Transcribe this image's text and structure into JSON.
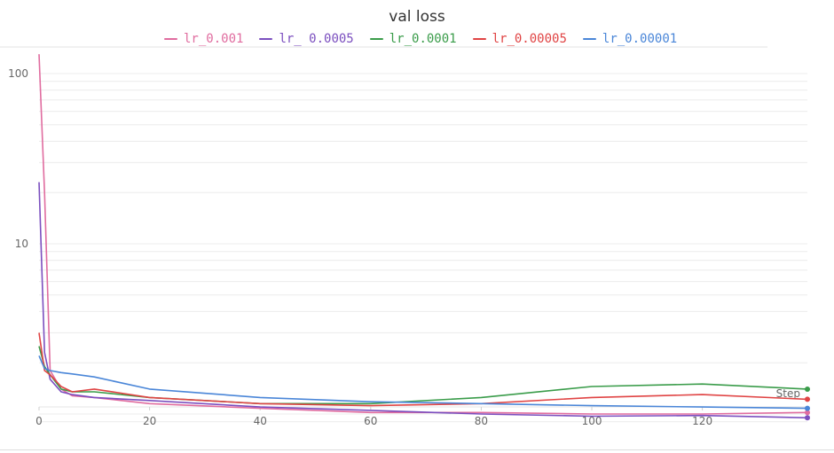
{
  "chart_data": {
    "type": "line",
    "title": "val loss",
    "xlabel": "Step",
    "ylabel": "",
    "yscale": "log",
    "xlim": [
      0,
      139
    ],
    "ylim": [
      0.9,
      150
    ],
    "x_ticks": [
      0,
      20,
      40,
      60,
      80,
      100,
      120
    ],
    "y_ticks": [
      10,
      100
    ],
    "grid": true,
    "legend_position": "top",
    "series": [
      {
        "name": "lr_0.001",
        "color": "#e06c9f",
        "x": [
          0,
          1,
          2,
          4,
          6,
          10,
          20,
          40,
          60,
          80,
          100,
          120,
          139
        ],
        "y": [
          130,
          20,
          1.8,
          1.4,
          1.28,
          1.25,
          1.15,
          1.08,
          1.02,
          1.02,
          1.0,
          1.0,
          1.02
        ]
      },
      {
        "name": "lr_ 0.0005",
        "color": "#7b4fbf",
        "x": [
          0,
          1,
          2,
          4,
          6,
          10,
          20,
          40,
          60,
          80,
          100,
          120,
          139
        ],
        "y": [
          23,
          2.3,
          1.6,
          1.35,
          1.3,
          1.25,
          1.2,
          1.1,
          1.05,
          1.0,
          0.97,
          0.98,
          0.95
        ]
      },
      {
        "name": "lr_0.0001",
        "color": "#3a9c4a",
        "x": [
          0,
          1,
          2,
          4,
          6,
          10,
          20,
          40,
          60,
          80,
          100,
          120,
          139
        ],
        "y": [
          2.5,
          1.9,
          1.7,
          1.4,
          1.35,
          1.35,
          1.25,
          1.15,
          1.15,
          1.25,
          1.45,
          1.5,
          1.4
        ]
      },
      {
        "name": "lr_0.00005",
        "color": "#e04444",
        "x": [
          0,
          1,
          2,
          4,
          6,
          10,
          20,
          40,
          60,
          80,
          100,
          120,
          139
        ],
        "y": [
          3.0,
          1.8,
          1.7,
          1.45,
          1.35,
          1.4,
          1.25,
          1.15,
          1.12,
          1.15,
          1.25,
          1.3,
          1.22
        ]
      },
      {
        "name": "lr_0.00001",
        "color": "#4a86d8",
        "x": [
          0,
          1,
          2,
          4,
          6,
          10,
          20,
          40,
          60,
          80,
          100,
          120,
          139
        ],
        "y": [
          2.2,
          1.85,
          1.8,
          1.75,
          1.72,
          1.65,
          1.4,
          1.25,
          1.18,
          1.15,
          1.12,
          1.1,
          1.08
        ]
      }
    ]
  }
}
